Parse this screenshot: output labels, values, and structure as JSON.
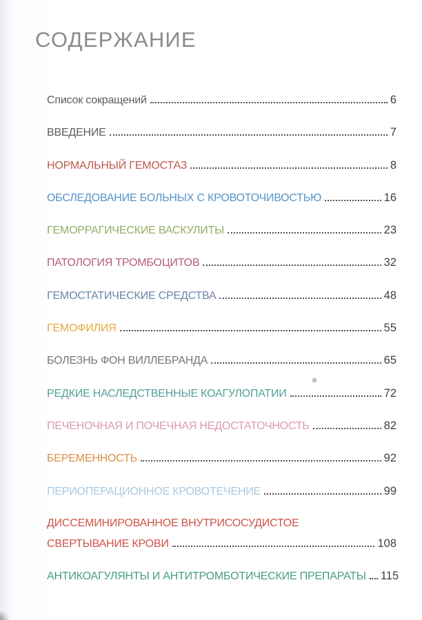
{
  "page": {
    "title": "СОДЕРЖАНИЕ"
  },
  "colors": {
    "title_gray": "#8b8b8b",
    "page_number": "#3c4044",
    "leader_dots": "#4e4e4e"
  },
  "toc": {
    "entries": [
      {
        "label": "Список сокращений",
        "page": "6",
        "color": "#595e62"
      },
      {
        "label": "ВВЕДЕНИЕ",
        "page": "7",
        "color": "#595e62"
      },
      {
        "label": "НОРМАЛЬНЫЙ ГЕМОСТАЗ",
        "page": "8",
        "color": "#c05a4c"
      },
      {
        "label": "ОБСЛЕДОВАНИЕ БОЛЬНЫХ С КРОВОТОЧИВОСТЬЮ",
        "page": "16",
        "color": "#5593c6"
      },
      {
        "label": "ГЕМОРРАГИЧЕСКИЕ ВАСКУЛИТЫ",
        "page": "23",
        "color": "#95ac65"
      },
      {
        "label": "ПАТОЛОГИЯ ТРОМБОЦИТОВ",
        "page": "32",
        "color": "#b25c7e"
      },
      {
        "label": "ГЕМОСТАТИЧЕСКИЕ СРЕДСТВА",
        "page": "48",
        "color": "#6b86a6"
      },
      {
        "label": "ГЕМОФИЛИЯ",
        "page": "55",
        "color": "#e6a83f"
      },
      {
        "label": "БОЛЕЗНЬ ФОН ВИЛЛЕБРАНДА",
        "page": "65",
        "color": "#76757f"
      },
      {
        "label": "РЕДКИЕ НАСЛЕДСТВЕННЫЕ КОАГУЛОПАТИИ",
        "page": "72",
        "color": "#56a09a"
      },
      {
        "label": "ПЕЧЕНОЧНАЯ И ПОЧЕЧНАЯ НЕДОСТАТОЧНОСТЬ",
        "page": "82",
        "color": "#dc9aab"
      },
      {
        "label": "БЕРЕМЕННОСТЬ",
        "page": "92",
        "color": "#d98f45"
      },
      {
        "label": "ПЕРИОПЕРАЦИОННОЕ КРОВОТЕЧЕНИЕ",
        "page": "99",
        "color": "#a8c9e2"
      },
      {
        "label": "ДИССЕМИНИРОВАННОЕ ВНУТРИСОСУДИСТОЕ",
        "label2": "СВЕРТЫВАНИЕ КРОВИ",
        "page": "108",
        "color": "#cd5347"
      },
      {
        "label": "АНТИКОАГУЛЯНТЫ И АНТИТРОМБОТИЧЕСКИЕ ПРЕПАРАТЫ",
        "page": "115",
        "color": "#47a078"
      }
    ]
  }
}
